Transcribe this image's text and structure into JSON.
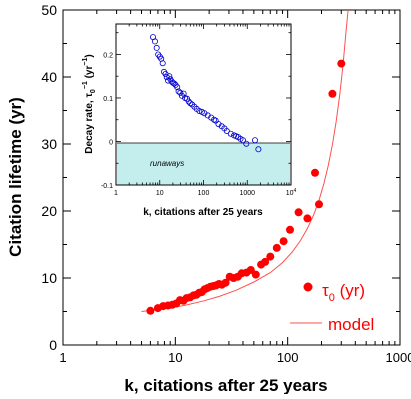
{
  "chart_data": [
    {
      "type": "scatter",
      "xlabel": "k, citations after 25 years",
      "ylabel": "Citation lifetime (yr)",
      "xscale": "log",
      "xlim": [
        1,
        1000
      ],
      "ylim": [
        0,
        50
      ],
      "x_ticks": [
        "1",
        "10",
        "100",
        "1000"
      ],
      "y_ticks": [
        "0",
        "10",
        "20",
        "30",
        "40",
        "50"
      ],
      "legend_position": "bottom-right",
      "series": [
        {
          "name": "τ0 (yr)",
          "legend_main": "τ",
          "legend_sub": "0",
          "legend_suffix": " (yr)",
          "style": "filled-circle",
          "color": "#ff0000",
          "x": [
            6.0,
            7.0,
            7.8,
            8.6,
            9.4,
            10.2,
            11.0,
            11.8,
            12.6,
            13.5,
            14.5,
            15.4,
            16.3,
            17.2,
            18.2,
            19.3,
            20.5,
            21.8,
            23.0,
            24.5,
            26.0,
            28.0,
            30.5,
            33.0,
            36.0,
            39.0,
            43.0,
            47.0,
            52.0,
            58.0,
            63.0,
            70.0,
            80.0,
            92.0,
            105.0,
            125.0,
            150.0,
            175.0,
            190.0,
            250.0,
            300.0
          ],
          "y": [
            5.1,
            5.5,
            5.8,
            5.9,
            6.0,
            6.2,
            6.7,
            6.6,
            7.0,
            7.1,
            7.4,
            7.5,
            7.8,
            7.9,
            8.3,
            8.5,
            8.7,
            8.8,
            8.9,
            9.1,
            9.0,
            9.3,
            10.2,
            10.0,
            10.2,
            10.7,
            10.8,
            11.2,
            10.5,
            12.0,
            12.4,
            13.2,
            14.5,
            15.5,
            17.2,
            19.8,
            18.9,
            25.7,
            21.0,
            37.5,
            42.0
          ]
        },
        {
          "name": "model",
          "style": "line",
          "color": "#ff5050",
          "x": [
            5,
            8,
            12,
            18,
            25,
            35,
            50,
            70,
            90,
            110,
            130,
            150,
            170,
            190,
            210,
            230,
            250,
            270,
            290,
            310,
            330,
            345,
            352
          ],
          "y": [
            5.0,
            5.4,
            5.9,
            6.6,
            7.3,
            8.2,
            9.4,
            10.8,
            12.3,
            13.9,
            15.6,
            17.4,
            19.4,
            21.6,
            24.1,
            26.8,
            29.9,
            33.3,
            37.2,
            41.6,
            46.6,
            50.5,
            52.5
          ]
        }
      ]
    },
    {
      "type": "scatter",
      "title": "",
      "xlabel": "k, citations after 25 years",
      "ylabel_prefix": "Decay rate, τ",
      "ylabel_sub": "0",
      "ylabel_sup": "−1",
      "ylabel_suffix": " (yr",
      "ylabel_sup2": "−1",
      "ylabel_end": ")",
      "xscale": "log",
      "xlim": [
        1,
        10000
      ],
      "ylim": [
        -0.1,
        0.27
      ],
      "x_ticks": [
        "1",
        "10",
        "100",
        "1000",
        "10"
      ],
      "x_tick_last_sup": "4",
      "y_ticks": [
        "-0.1",
        "0",
        "0.1",
        "0.2"
      ],
      "region_label": "runaways",
      "region_color": "#c4eeee",
      "series": [
        {
          "name": "",
          "style": "open-circle",
          "color": "#0000cc",
          "x": [
            7.0,
            7.8,
            8.5,
            9.2,
            10.0,
            10.8,
            11.7,
            12.5,
            13.5,
            14.5,
            15.5,
            16.5,
            17.5,
            18.7,
            20.0,
            21.5,
            23.0,
            25.0,
            27.0,
            29.5,
            32.0,
            35.0,
            38.0,
            42.0,
            46.0,
            50.0,
            55.0,
            62.0,
            70.0,
            80.0,
            92.0,
            105.0,
            125.0,
            150.0,
            175.0,
            190.0,
            220.0,
            260.0,
            300.0,
            340.0,
            420.0,
            500.0,
            560.0,
            620.0,
            700.0,
            800.0,
            950.0,
            1500.0,
            1800.0
          ],
          "y": [
            0.24,
            0.23,
            0.215,
            0.2,
            0.195,
            0.19,
            0.18,
            0.16,
            0.155,
            0.148,
            0.14,
            0.15,
            0.143,
            0.138,
            0.135,
            0.133,
            0.13,
            0.125,
            0.115,
            0.112,
            0.105,
            0.11,
            0.1,
            0.098,
            0.092,
            0.088,
            0.085,
            0.08,
            0.075,
            0.07,
            0.068,
            0.065,
            0.06,
            0.055,
            0.05,
            0.048,
            0.04,
            0.035,
            0.03,
            0.024,
            0.018,
            0.014,
            0.012,
            0.01,
            0.006,
            0.003,
            -0.005,
            0.003,
            -0.018
          ]
        }
      ]
    }
  ]
}
